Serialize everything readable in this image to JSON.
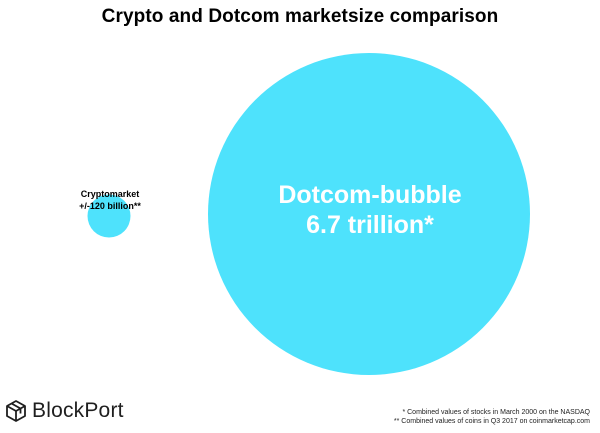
{
  "chart_data": {
    "type": "bubble",
    "title": "Crypto and Dotcom marketsize comparison",
    "series": [
      {
        "name": "Cryptomarket",
        "label_lines": [
          "Cryptomarket",
          "+/-120 billion**"
        ],
        "value": 120,
        "unit": "billion"
      },
      {
        "name": "Dotcom-bubble",
        "label_lines": [
          "Dotcom-bubble",
          "6.7 trillion*"
        ],
        "value": 6700,
        "unit": "billion"
      }
    ],
    "footnotes": [
      "* Combined values of stocks in March 2000 on the NASDAQ",
      "** Combined values of coins in Q3 2017 on coinmarketcap.com"
    ]
  },
  "brand": {
    "name": "BlockPort",
    "logo_icon": "blockport-logo-icon"
  },
  "colors": {
    "bubble": "#4ee2fc",
    "bubble_label": "#ffffff"
  }
}
